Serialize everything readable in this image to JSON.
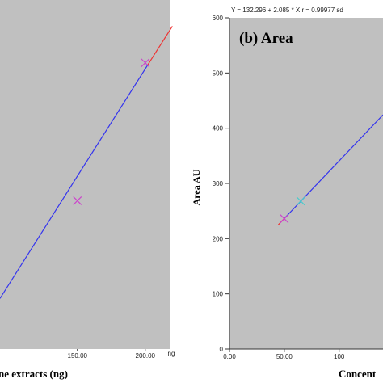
{
  "chart_data": [
    {
      "type": "scatter",
      "panel": "left",
      "xlabel": "ne extracts (ng)",
      "x_unit": "ng",
      "x_ticks": [
        "150.00",
        "200.00"
      ],
      "xlim": [
        93,
        218
      ],
      "ylim": [
        0,
        100
      ],
      "grid": false,
      "points": [
        {
          "x": 150,
          "y": 42.5,
          "marker": "x",
          "color": "#cc44cc"
        },
        {
          "x": 200,
          "y": 82.0,
          "marker": "x",
          "color": "#cc44cc"
        }
      ],
      "fit_line": {
        "x": [
          93,
          202
        ],
        "y": [
          14.5,
          81.5
        ],
        "color": "#3333ee"
      },
      "fit_extension": {
        "x": [
          202,
          220
        ],
        "y": [
          81.5,
          92.5
        ],
        "color": "#ee3333"
      }
    },
    {
      "type": "scatter",
      "panel": "right",
      "title": "(b) Area",
      "equation": "Y = 132.296 + 2.085 * X   r = 0.99977   sd",
      "xlabel": "Concent",
      "ylabel": "Area AU",
      "y_ticks": [
        "0",
        "100",
        "200",
        "300",
        "400",
        "500",
        "600"
      ],
      "x_ticks": [
        "0.00",
        "50.00",
        "100"
      ],
      "xlim": [
        0,
        140
      ],
      "ylim": [
        0,
        600
      ],
      "grid": false,
      "points": [
        {
          "x": 50,
          "y": 236,
          "marker": "x",
          "color": "#cc44cc"
        },
        {
          "x": 65,
          "y": 268,
          "marker": "x",
          "color": "#44cccc"
        }
      ],
      "fit_line": {
        "x": [
          50,
          140
        ],
        "y": [
          236.5,
          424.2
        ],
        "color": "#3333ee"
      },
      "fit_extension": {
        "x": [
          44.5,
          50
        ],
        "y": [
          225.1,
          236.5
        ],
        "color": "#ee3333"
      }
    }
  ]
}
